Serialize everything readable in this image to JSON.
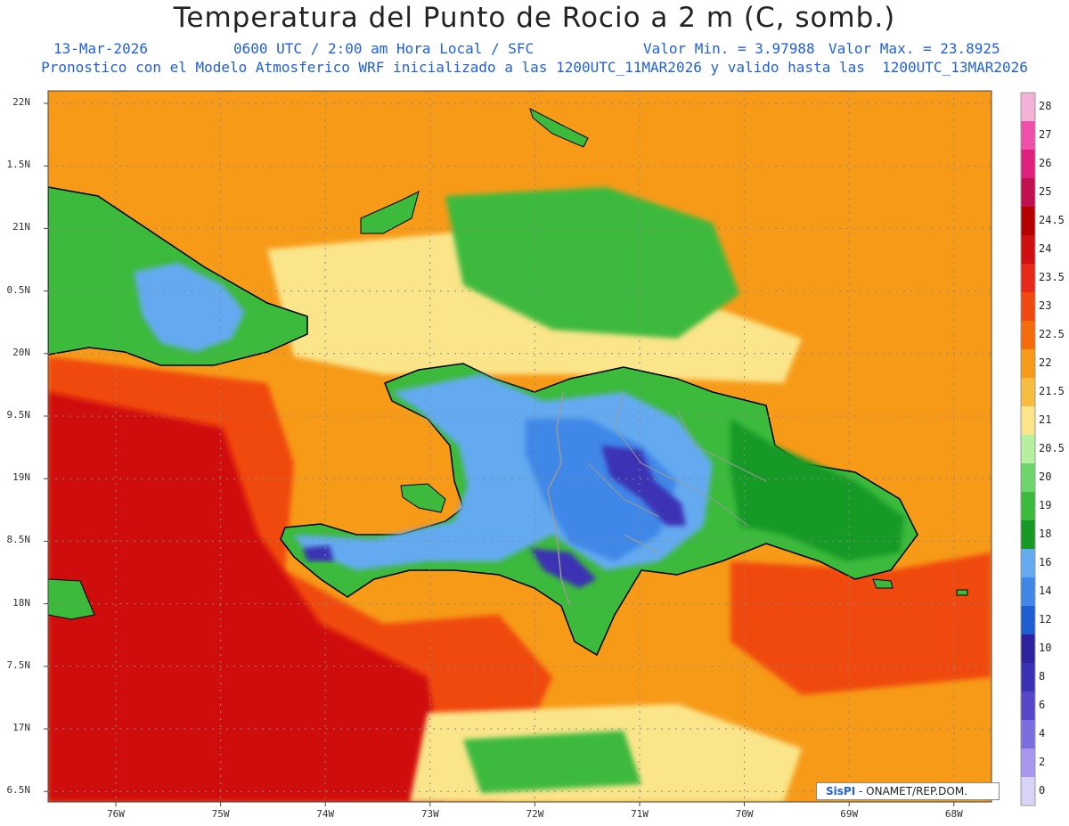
{
  "title": "Temperatura del Punto de Rocio a 2 m (C, somb.)",
  "subtitle": {
    "date": "13-Mar-2026",
    "time": "0600 UTC / 2:00 am Hora Local / SFC",
    "min": "Valor Min. = 3.97988",
    "max": "Valor Max. = 23.8925",
    "model": "Pronostico con el Modelo Atmosferico WRF inicializado a las 1200UTC_11MAR2026 y valido hasta las  1200UTC_13MAR2026"
  },
  "credit": {
    "brand": "SisPI",
    "org": "- ONAMET/REP.DOM."
  },
  "axes": {
    "lat_labels": [
      "22N",
      "1.5N",
      "21N",
      "0.5N",
      "20N",
      "9.5N",
      "19N",
      "8.5N",
      "18N",
      "7.5N",
      "17N",
      "6.5N"
    ],
    "lon_labels": [
      "76W",
      "75W",
      "74W",
      "73W",
      "72W",
      "71W",
      "70W",
      "69W",
      "68W"
    ]
  },
  "colorbar": {
    "labels": [
      "28",
      "27",
      "26",
      "25",
      "24.5",
      "24",
      "23.5",
      "23",
      "22.5",
      "22",
      "21.5",
      "21",
      "20.5",
      "20",
      "19",
      "18",
      "16",
      "14",
      "12",
      "10",
      "8",
      "6",
      "4",
      "2",
      "0"
    ],
    "colors": [
      "#f4b3d6",
      "#ef4fa8",
      "#e0207c",
      "#c01050",
      "#b40000",
      "#d01010",
      "#e82818",
      "#f04a10",
      "#f46c0a",
      "#f79a18",
      "#f8bc40",
      "#fbe58a",
      "#b4f0a0",
      "#6cd66c",
      "#3cba3c",
      "#159a26",
      "#63aaf0",
      "#3f88e8",
      "#1f5ed0",
      "#2e229e",
      "#3a32b4",
      "#5646c8",
      "#7a6ee0",
      "#a896f0",
      "#d8d4f8"
    ]
  },
  "colors": {
    "ocean_base": "#f79a18",
    "ocean_warm": "#f04a10",
    "ocean_hot": "#d01010",
    "ocean_cool": "#fbe58a",
    "land_green": "#3cba3c",
    "land_dark_green": "#159a26",
    "land_blue": "#63aaf0",
    "land_mid_blue": "#3f88e8",
    "land_deep": "#3a32b4",
    "border": "#999999",
    "coast": "#000000"
  }
}
